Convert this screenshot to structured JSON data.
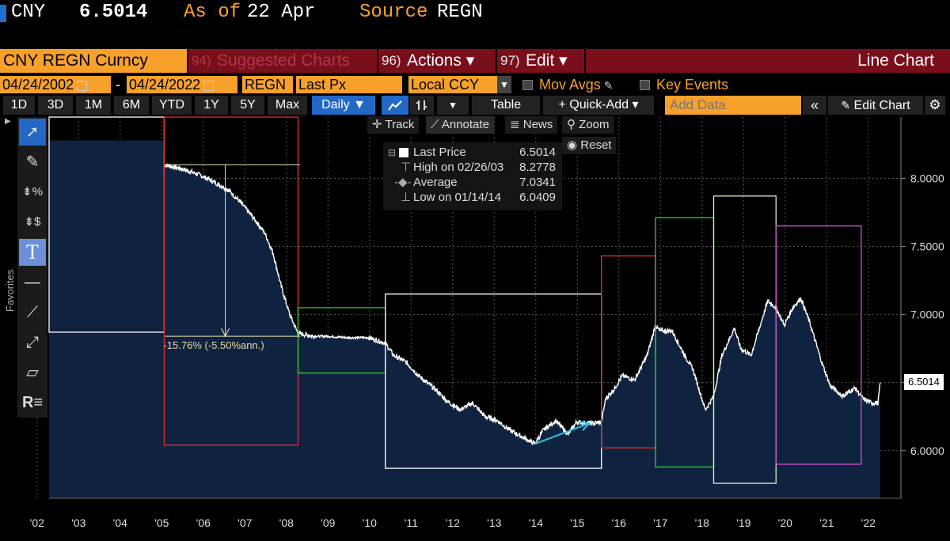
{
  "header": {
    "ticker": "CNY",
    "price": "6.5014",
    "as_of_label": "As of",
    "as_of_value": "22 Apr",
    "source_label": "Source",
    "source_value": "REGN"
  },
  "toolbar": {
    "security": "CNY REGN Curncy",
    "suggested_num": "94)",
    "suggested_label": "Suggested Charts",
    "actions_num": "96)",
    "actions_label": "Actions ▾",
    "edit_num": "97)",
    "edit_label": "Edit ▾",
    "chart_type": "Line Chart",
    "start_date": "04/24/2002",
    "date_sep": "-",
    "end_date": "04/24/2022",
    "source_field": "REGN",
    "field": "Last Px",
    "currency": "Local CCY",
    "mov_avgs": "Mov Avgs",
    "key_events": "Key Events",
    "periods": [
      "1D",
      "3D",
      "1M",
      "6M",
      "YTD",
      "1Y",
      "5Y",
      "Max"
    ],
    "frequency": "Daily ▼",
    "table": "Table",
    "quick_add": "+ Quick-Add ▾",
    "add_data_placeholder": "Add Data",
    "edit_chart": "Edit Chart"
  },
  "chart_tools": {
    "track": "Track",
    "annotate": "Annotate",
    "news": "News",
    "zoom": "Zoom",
    "reset": "Reset"
  },
  "sidebar": {
    "favorites": "Favorites",
    "tools": [
      "pointer-icon",
      "pen-icon",
      "percent-tool-icon",
      "dollar-tool-icon",
      "text-tool-icon",
      "horizontal-line-icon",
      "trend-line-icon",
      "trend-channel-icon",
      "band-icon",
      "regression-icon"
    ]
  },
  "legend": {
    "last_label": "Last Price",
    "last_value": "6.5014",
    "high_label": "High on 02/26/03",
    "high_value": "8.2778",
    "avg_label": "Average",
    "avg_value": "7.0341",
    "low_label": "Low on 01/14/14",
    "low_value": "6.0409"
  },
  "colors": {
    "accent": "#f7a12b",
    "bar": "#7a0f1c",
    "fill": "#0f2340",
    "line": "#ffffff"
  },
  "chart_data": {
    "type": "area",
    "series_name": "Last Price",
    "x_ticks": [
      "'02",
      "'03",
      "'04",
      "'05",
      "'06",
      "'07",
      "'08",
      "'09",
      "'10",
      "'11",
      "'12",
      "'13",
      "'14",
      "'15",
      "'16",
      "'17",
      "'18",
      "'19",
      "'20",
      "'21",
      "'22"
    ],
    "y_ticks": [
      "8.0000",
      "7.5000",
      "7.0000",
      "6.5000",
      "6.0000"
    ],
    "ylim": [
      5.65,
      8.45
    ],
    "xlim": [
      2002.31,
      2022.31
    ],
    "last_value_label": "6.5014",
    "annotation": "-15.76% (-5.50%ann.)",
    "points": [
      [
        2005.08,
        8.1
      ],
      [
        2005.5,
        8.07
      ],
      [
        2005.9,
        8.03
      ],
      [
        2006.3,
        7.97
      ],
      [
        2006.6,
        7.92
      ],
      [
        2006.9,
        7.83
      ],
      [
        2007.2,
        7.72
      ],
      [
        2007.5,
        7.6
      ],
      [
        2007.7,
        7.45
      ],
      [
        2007.9,
        7.2
      ],
      [
        2008.1,
        7.0
      ],
      [
        2008.3,
        6.86
      ],
      [
        2008.7,
        6.84
      ],
      [
        2009.0,
        6.84
      ],
      [
        2009.5,
        6.83
      ],
      [
        2010.0,
        6.83
      ],
      [
        2010.4,
        6.79
      ],
      [
        2010.6,
        6.7
      ],
      [
        2010.9,
        6.65
      ],
      [
        2011.2,
        6.55
      ],
      [
        2011.6,
        6.45
      ],
      [
        2011.9,
        6.36
      ],
      [
        2012.2,
        6.3
      ],
      [
        2012.5,
        6.35
      ],
      [
        2012.8,
        6.25
      ],
      [
        2013.1,
        6.22
      ],
      [
        2013.4,
        6.15
      ],
      [
        2013.7,
        6.1
      ],
      [
        2014.0,
        6.05
      ],
      [
        2014.2,
        6.15
      ],
      [
        2014.5,
        6.22
      ],
      [
        2014.8,
        6.12
      ],
      [
        2015.0,
        6.21
      ],
      [
        2015.4,
        6.2
      ],
      [
        2015.6,
        6.21
      ],
      [
        2015.7,
        6.38
      ],
      [
        2015.9,
        6.45
      ],
      [
        2016.1,
        6.55
      ],
      [
        2016.4,
        6.52
      ],
      [
        2016.7,
        6.7
      ],
      [
        2016.9,
        6.92
      ],
      [
        2017.0,
        6.88
      ],
      [
        2017.3,
        6.88
      ],
      [
        2017.6,
        6.7
      ],
      [
        2017.8,
        6.6
      ],
      [
        2018.1,
        6.3
      ],
      [
        2018.3,
        6.4
      ],
      [
        2018.5,
        6.7
      ],
      [
        2018.8,
        6.9
      ],
      [
        2018.95,
        6.75
      ],
      [
        2019.2,
        6.7
      ],
      [
        2019.4,
        6.9
      ],
      [
        2019.6,
        7.1
      ],
      [
        2019.8,
        7.05
      ],
      [
        2020.0,
        6.92
      ],
      [
        2020.2,
        7.05
      ],
      [
        2020.4,
        7.12
      ],
      [
        2020.6,
        6.95
      ],
      [
        2020.9,
        6.65
      ],
      [
        2021.1,
        6.48
      ],
      [
        2021.4,
        6.4
      ],
      [
        2021.7,
        6.46
      ],
      [
        2021.9,
        6.38
      ],
      [
        2022.1,
        6.35
      ],
      [
        2022.25,
        6.35
      ],
      [
        2022.31,
        6.5
      ]
    ],
    "pre_period": {
      "from": 2002.31,
      "to": 2005.08,
      "value": 8.2778
    }
  }
}
